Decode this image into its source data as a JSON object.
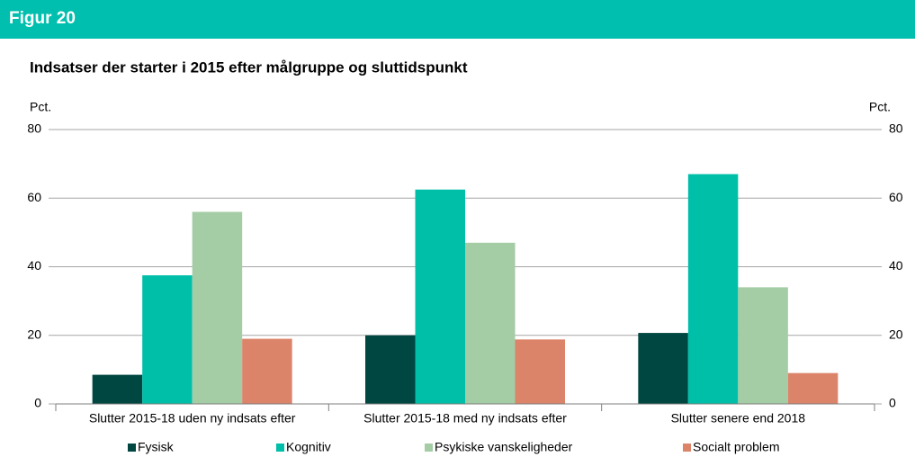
{
  "figure_label": "Figur 20",
  "chart_data": {
    "type": "bar",
    "title": "Indsatser der starter i 2015 efter målgruppe og sluttidspunkt",
    "ylabel": "Pct.",
    "y2label": "Pct.",
    "categories": [
      "Slutter 2015-18 uden ny indsats efter",
      "Slutter 2015-18 med ny indsats efter",
      "Slutter senere end 2018"
    ],
    "series": [
      {
        "name": "Fysisk",
        "color": "#004741",
        "values": [
          8.5,
          20,
          20.7
        ]
      },
      {
        "name": "Kognitiv",
        "color": "#00bfa9",
        "values": [
          37.5,
          62.5,
          67
        ]
      },
      {
        "name": "Psykiske vanskeligheder",
        "color": "#a4cca5",
        "values": [
          56,
          47,
          34
        ]
      },
      {
        "name": "Socialt problem",
        "color": "#dc846a",
        "values": [
          19,
          18.8,
          9
        ]
      }
    ],
    "ylim": [
      0,
      80
    ],
    "yticks": [
      0,
      20,
      40,
      60,
      80
    ],
    "y2lim": [
      0,
      80
    ],
    "y2ticks": [
      0,
      20,
      40,
      60,
      80
    ],
    "grid": true,
    "legend": "bottom"
  }
}
